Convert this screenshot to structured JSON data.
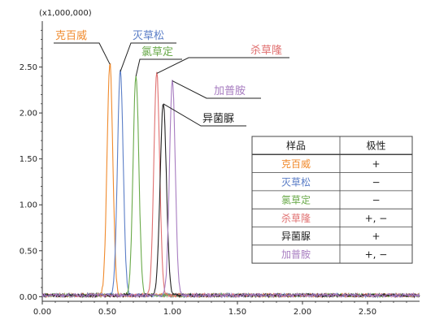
{
  "chart_data": {
    "type": "line",
    "scale_label": "(x1,000,000)",
    "xlim": [
      0,
      2.9
    ],
    "ylim": [
      -0.05,
      3.0
    ],
    "x_ticks": [
      "0.00",
      "0.50",
      "1.00",
      "1.50",
      "2.00",
      "2.50"
    ],
    "y_ticks": [
      "0.00",
      "0.50",
      "1.00",
      "1.50",
      "2.00",
      "2.50"
    ],
    "grid": false,
    "series": [
      {
        "name": "克百威",
        "color": "#f08a2c",
        "peak_x": 0.52,
        "peak_y": 2.53,
        "width": 0.022
      },
      {
        "name": "灭草松",
        "color": "#5b7ec7",
        "peak_x": 0.6,
        "peak_y": 2.45,
        "width": 0.022
      },
      {
        "name": "氯草定",
        "color": "#6aaa4a",
        "peak_x": 0.72,
        "peak_y": 2.4,
        "width": 0.022
      },
      {
        "name": "杀草隆",
        "color": "#e07070",
        "peak_x": 0.88,
        "peak_y": 2.43,
        "width": 0.022
      },
      {
        "name": "异菌脲",
        "color": "#222222",
        "peak_x": 0.93,
        "peak_y": 2.1,
        "width": 0.024
      },
      {
        "name": "加普胺",
        "color": "#a77cc0",
        "peak_x": 1.0,
        "peak_y": 2.35,
        "width": 0.022
      }
    ],
    "table": {
      "headers": [
        "样品",
        "极性"
      ],
      "rows": [
        {
          "sample": "克百威",
          "polarity": "+",
          "color": "#f08a2c"
        },
        {
          "sample": "灭草松",
          "polarity": "−",
          "color": "#5b7ec7"
        },
        {
          "sample": "氯草定",
          "polarity": "−",
          "color": "#6aaa4a"
        },
        {
          "sample": "杀草隆",
          "polarity": "+, −",
          "color": "#e07070"
        },
        {
          "sample": "异菌脲",
          "polarity": "+",
          "color": "#222222"
        },
        {
          "sample": "加普胺",
          "polarity": "+, −",
          "color": "#a77cc0"
        }
      ]
    }
  }
}
